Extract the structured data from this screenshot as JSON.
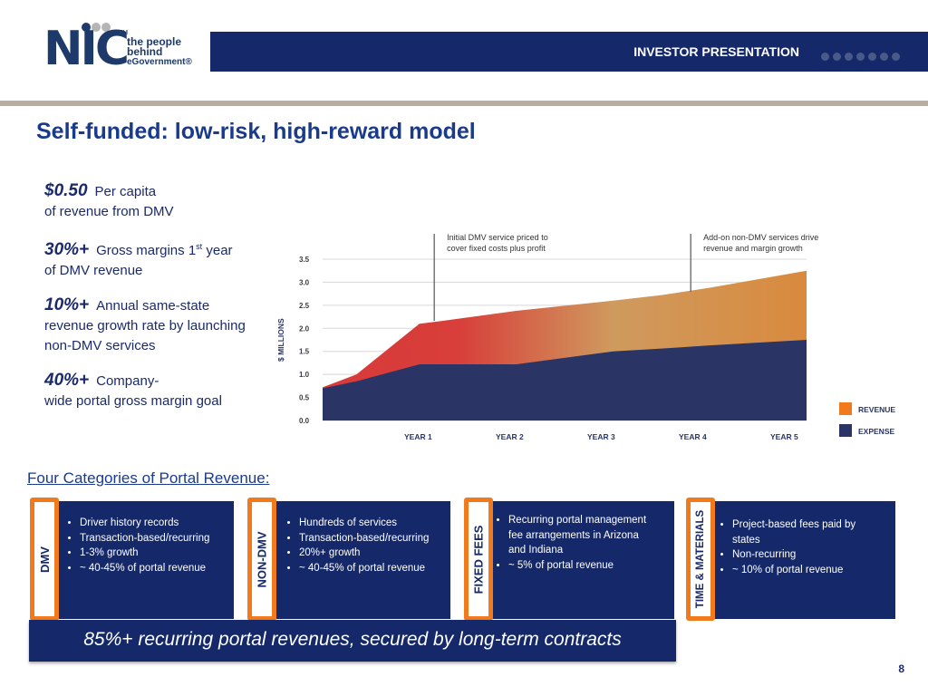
{
  "header": {
    "logo_text": "NIC",
    "logo_tm": "TM",
    "logo_tagline": [
      "the people",
      "behind",
      "eGovernment®"
    ],
    "banner_title": "INVESTOR PRESENTATION"
  },
  "slide_title": "Self-funded: low-risk, high-reward model",
  "stats": [
    {
      "value": "$0.50",
      "text_a": "Per capita",
      "text_b": "of revenue from DMV"
    },
    {
      "value": "30%+",
      "text_a": "Gross margins 1",
      "sup": "st",
      "text_a2": " year",
      "text_b": "of DMV revenue"
    },
    {
      "value": "10%+",
      "text_a": "Annual same-state",
      "text_b": "revenue growth rate by launching non-DMV services"
    },
    {
      "value": "40%+",
      "text_a": "Company-",
      "text_b": "wide portal gross margin goal"
    }
  ],
  "chart_data": {
    "type": "area",
    "ylabel": "$ MILLIONS",
    "ylim": [
      0,
      3.5
    ],
    "yticks": [
      "0.0",
      "0.5",
      "1.0",
      "1.5",
      "2.0",
      "2.5",
      "3.0",
      "3.5"
    ],
    "x_tick_labels": [
      "YEAR 1",
      "YEAR 2",
      "YEAR 3",
      "YEAR 4",
      "YEAR 5"
    ],
    "x": [
      0,
      0.35,
      1,
      1.2,
      2,
      3,
      3.5,
      4,
      5
    ],
    "series": [
      {
        "name": "REVENUE",
        "color": "#f07a1c",
        "values": [
          0.72,
          1.0,
          2.1,
          2.15,
          2.38,
          2.6,
          2.72,
          2.88,
          3.25
        ]
      },
      {
        "name": "EXPENSE",
        "color": "#2a3566",
        "values": [
          0.7,
          0.85,
          1.22,
          1.22,
          1.22,
          1.5,
          1.56,
          1.63,
          1.75
        ]
      }
    ],
    "annotations": [
      {
        "text": "Initial DMV service priced to cover fixed costs plus profit",
        "x": 1.2
      },
      {
        "text": "Add-on non-DMV services drive revenue and margin growth",
        "x": 3.85
      }
    ],
    "legend": [
      "REVENUE",
      "EXPENSE"
    ]
  },
  "categories_title": "Four Categories of Portal Revenue:",
  "categories": [
    {
      "label": "DMV",
      "bullets": [
        "Driver history records",
        "Transaction-based/recurring",
        "1-3% growth",
        "~ 40-45% of portal revenue"
      ]
    },
    {
      "label": "NON-DMV",
      "bullets": [
        "Hundreds of services",
        "Transaction-based/recurring",
        "20%+ growth",
        "~ 40-45% of portal revenue"
      ]
    },
    {
      "label": "FIXED FEES",
      "bullets": [
        "Recurring portal management fee arrangements in Arizona and Indiana",
        "~ 5% of portal revenue"
      ]
    },
    {
      "label": "TIME & MATERIALS",
      "bullets": [
        "Project-based fees paid by states",
        "Non-recurring",
        "~ 10% of portal revenue"
      ]
    }
  ],
  "bottom_banner": "85%+ recurring portal revenues, secured by long-term contracts",
  "page_number": "8",
  "colors": {
    "navy": "#15296a",
    "orange": "#f07a1c",
    "title_blue": "#1a3a8c"
  }
}
